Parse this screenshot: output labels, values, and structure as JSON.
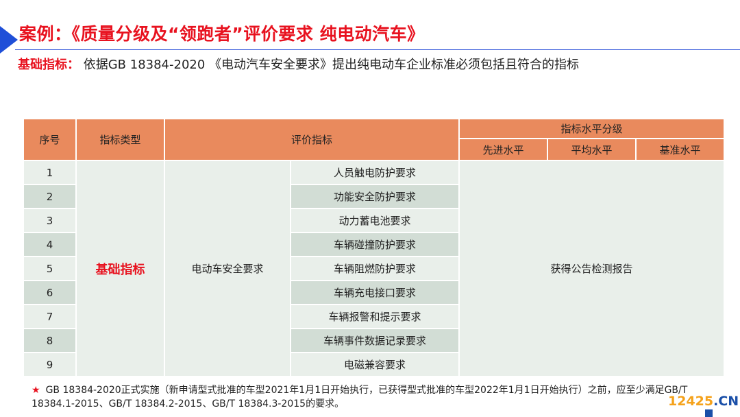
{
  "header": {
    "title": "案例：《质量分级及“领跑者”评价要求 纯电动汽车》",
    "subtitle_lead": "基础指标：",
    "subtitle_text": "依据GB 18384-2020 《电动汽车安全要求》提出纯电动车企业标准必须包括且符合的指标"
  },
  "table": {
    "headers": {
      "seq": "序号",
      "type": "指标类型",
      "criteria": "评价指标",
      "level_group": "指标水平分级",
      "advanced": "先进水平",
      "average": "平均水平",
      "baseline": "基准水平"
    },
    "index_type": "基础指标",
    "category": "电动车安全要求",
    "level_result": "获得公告检测报告",
    "rows": [
      {
        "no": "1",
        "item": "人员触电防护要求"
      },
      {
        "no": "2",
        "item": "功能安全防护要求"
      },
      {
        "no": "3",
        "item": "动力蓄电池要求"
      },
      {
        "no": "4",
        "item": "车辆碰撞防护要求"
      },
      {
        "no": "5",
        "item": "车辆阻燃防护要求"
      },
      {
        "no": "6",
        "item": "车辆充电接口要求"
      },
      {
        "no": "7",
        "item": "车辆报警和提示要求"
      },
      {
        "no": "8",
        "item": "车辆事件数据记录要求"
      },
      {
        "no": "9",
        "item": "电磁兼容要求"
      }
    ]
  },
  "footnote": {
    "star": "★",
    "text": "GB 18384-2020正式实施（新申请型式批准的车型2021年1月1日开始执行，已获得型式批准的车型2022年1月1日开始执行）之前，应至少满足GB/T  18384.1-2015、GB/T 18384.2-2015、GB/T 18384.3-2015的要求。"
  },
  "watermark": {
    "number": "12425",
    "domain": ".CN"
  }
}
